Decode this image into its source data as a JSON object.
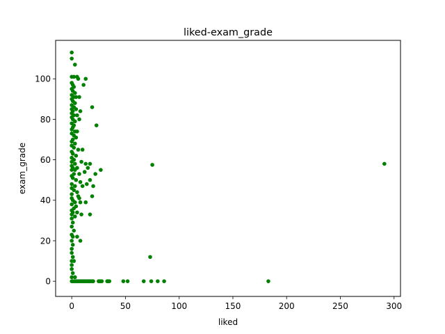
{
  "chart_data": {
    "type": "scatter",
    "title": "liked-exam_grade",
    "xlabel": "liked",
    "ylabel": "exam_grade",
    "xlim": [
      -15,
      306
    ],
    "ylim": [
      -7.5,
      119
    ],
    "xticks": [
      0,
      50,
      100,
      150,
      200,
      250,
      300
    ],
    "yticks": [
      0,
      20,
      40,
      60,
      80,
      100
    ],
    "grid": false,
    "marker_color": "#008000",
    "series": [
      {
        "points": [
          [
            0,
            113
          ],
          [
            0,
            110
          ],
          [
            3,
            107
          ],
          [
            0,
            101
          ],
          [
            2,
            101
          ],
          [
            5,
            101
          ],
          [
            6,
            100
          ],
          [
            13,
            100
          ],
          [
            0,
            98
          ],
          [
            1,
            97
          ],
          [
            2,
            96
          ],
          [
            11,
            97
          ],
          [
            0,
            95
          ],
          [
            1,
            94
          ],
          [
            3,
            93
          ],
          [
            0,
            92
          ],
          [
            2,
            91
          ],
          [
            4,
            91
          ],
          [
            7,
            91
          ],
          [
            0,
            90
          ],
          [
            1,
            89
          ],
          [
            3,
            88
          ],
          [
            0,
            87
          ],
          [
            2,
            86
          ],
          [
            19,
            86
          ],
          [
            0,
            85
          ],
          [
            1,
            84
          ],
          [
            4,
            85
          ],
          [
            8,
            84
          ],
          [
            0,
            83
          ],
          [
            2,
            82
          ],
          [
            5,
            82
          ],
          [
            0,
            81
          ],
          [
            1,
            80
          ],
          [
            3,
            79
          ],
          [
            7,
            80
          ],
          [
            0,
            78
          ],
          [
            2,
            77
          ],
          [
            23,
            77
          ],
          [
            1,
            76
          ],
          [
            0,
            75
          ],
          [
            3,
            74
          ],
          [
            5,
            74
          ],
          [
            0,
            73
          ],
          [
            2,
            72
          ],
          [
            4,
            71
          ],
          [
            1,
            70
          ],
          [
            0,
            69
          ],
          [
            3,
            68
          ],
          [
            0,
            67
          ],
          [
            2,
            66
          ],
          [
            6,
            65
          ],
          [
            10,
            65
          ],
          [
            0,
            64
          ],
          [
            1,
            63
          ],
          [
            4,
            62
          ],
          [
            0,
            61
          ],
          [
            2,
            60
          ],
          [
            0,
            59
          ],
          [
            3,
            58
          ],
          [
            9,
            59
          ],
          [
            13,
            58
          ],
          [
            17,
            58
          ],
          [
            291,
            58
          ],
          [
            75,
            57.5
          ],
          [
            0,
            57
          ],
          [
            1,
            56
          ],
          [
            5,
            56
          ],
          [
            15,
            56
          ],
          [
            0,
            55
          ],
          [
            3,
            55
          ],
          [
            27,
            55
          ],
          [
            12,
            54
          ],
          [
            2,
            53
          ],
          [
            7,
            53
          ],
          [
            22,
            53
          ],
          [
            0,
            52
          ],
          [
            1,
            51
          ],
          [
            4,
            50
          ],
          [
            8,
            49
          ],
          [
            17,
            50
          ],
          [
            0,
            48
          ],
          [
            3,
            47
          ],
          [
            10,
            47
          ],
          [
            14,
            48
          ],
          [
            20,
            47
          ],
          [
            0,
            46
          ],
          [
            2,
            45
          ],
          [
            5,
            44
          ],
          [
            0,
            43
          ],
          [
            6,
            42
          ],
          [
            7,
            41
          ],
          [
            19,
            42
          ],
          [
            0,
            41
          ],
          [
            1,
            40
          ],
          [
            3,
            39
          ],
          [
            8,
            39
          ],
          [
            13,
            39
          ],
          [
            0,
            38
          ],
          [
            4,
            37
          ],
          [
            2,
            36
          ],
          [
            0,
            35
          ],
          [
            1,
            34
          ],
          [
            5,
            34
          ],
          [
            0,
            33
          ],
          [
            9,
            33
          ],
          [
            17,
            33
          ],
          [
            3,
            32
          ],
          [
            0,
            31
          ],
          [
            1,
            29
          ],
          [
            0,
            27
          ],
          [
            2,
            25
          ],
          [
            0,
            23
          ],
          [
            1,
            22
          ],
          [
            5,
            22
          ],
          [
            0,
            20
          ],
          [
            8,
            20
          ],
          [
            1,
            18
          ],
          [
            0,
            16
          ],
          [
            0,
            14
          ],
          [
            1,
            12
          ],
          [
            73,
            12
          ],
          [
            0,
            10
          ],
          [
            2,
            10
          ],
          [
            0,
            8
          ],
          [
            0,
            6
          ],
          [
            1,
            4
          ],
          [
            0,
            2
          ],
          [
            3,
            2
          ],
          [
            0,
            0
          ],
          [
            1,
            0
          ],
          [
            2,
            0
          ],
          [
            3,
            0
          ],
          [
            4,
            0
          ],
          [
            5,
            0
          ],
          [
            6,
            0
          ],
          [
            7,
            0
          ],
          [
            8,
            0
          ],
          [
            9,
            0
          ],
          [
            10,
            0
          ],
          [
            11,
            0
          ],
          [
            12,
            0
          ],
          [
            13,
            0
          ],
          [
            14,
            0
          ],
          [
            15,
            0
          ],
          [
            16,
            0
          ],
          [
            17,
            0
          ],
          [
            18,
            0
          ],
          [
            19,
            0
          ],
          [
            20,
            0
          ],
          [
            25,
            0
          ],
          [
            26,
            0
          ],
          [
            27,
            0
          ],
          [
            28,
            0
          ],
          [
            33,
            0
          ],
          [
            34,
            0
          ],
          [
            35,
            0
          ],
          [
            48,
            0
          ],
          [
            52,
            0
          ],
          [
            67,
            0
          ],
          [
            74,
            0
          ],
          [
            80,
            0
          ],
          [
            86,
            0
          ],
          [
            183,
            0
          ]
        ]
      }
    ]
  }
}
